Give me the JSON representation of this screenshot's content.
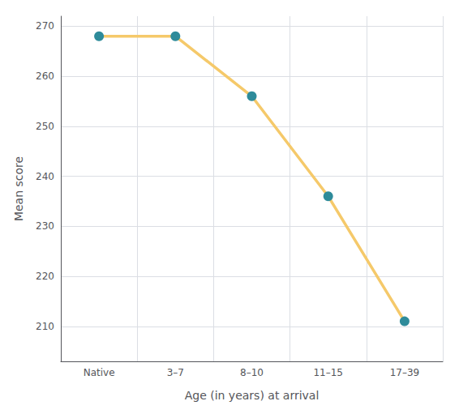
{
  "chart_data": {
    "type": "line",
    "categories": [
      "Native",
      "3–7",
      "8–10",
      "11–15",
      "17–39"
    ],
    "values": [
      268,
      268,
      256,
      236,
      211
    ],
    "color": "#F5C96A",
    "colors": [
      "#2E8B9A",
      "#2E8B9A",
      "#2E8B9A",
      "#2E8B9A",
      "#2E8B9A"
    ],
    "marker": "circle",
    "xlabel": "Age (in years) at arrival",
    "ylabel": "Mean score",
    "ylim": [
      203,
      272
    ],
    "yticks": [
      210,
      220,
      230,
      240,
      250,
      260,
      270
    ],
    "grid": true
  }
}
